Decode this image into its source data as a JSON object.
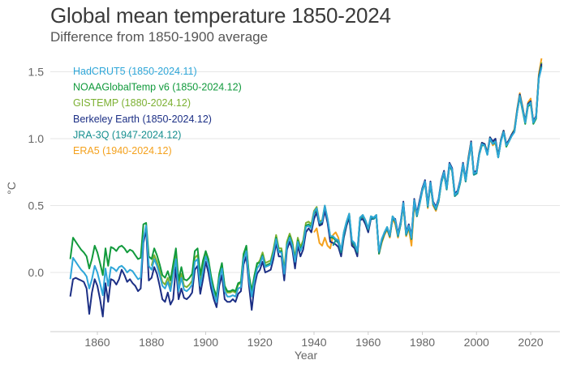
{
  "chart_data": {
    "type": "line",
    "title": "Global mean temperature 1850-2024",
    "subtitle": "Difference from 1850-1900 average",
    "xlabel": "Year",
    "ylabel": "°C",
    "xlim": [
      1843,
      2033
    ],
    "ylim": [
      -0.44,
      1.65
    ],
    "xticks": [
      1860,
      1880,
      1900,
      1920,
      1940,
      1960,
      1980,
      2000,
      2020
    ],
    "yticks": [
      "0.0",
      "0.5",
      "1.0",
      "1.5"
    ],
    "ytick_values": [
      0,
      0.5,
      1.0,
      1.5
    ],
    "grid": "horizontal",
    "legend_position": "top-left",
    "series": [
      {
        "name": "HadCRUT5 (1850-2024.11)",
        "color": "#2ea6d8",
        "start_year": 1850,
        "values": [
          -0.05,
          0.11,
          0.08,
          0.05,
          0.02,
          0.0,
          -0.03,
          -0.12,
          -0.05,
          0.05,
          0.0,
          -0.08,
          -0.17,
          0.03,
          -0.1,
          0.04,
          0.03,
          0.01,
          0.04,
          0.05,
          0.03,
          0.0,
          0.02,
          0.01,
          -0.02,
          -0.05,
          -0.04,
          0.25,
          0.35,
          0.05,
          0.02,
          0.1,
          0.05,
          -0.02,
          -0.1,
          -0.12,
          -0.07,
          -0.14,
          -0.02,
          0.1,
          -0.14,
          -0.04,
          -0.13,
          -0.14,
          -0.12,
          -0.09,
          0.08,
          0.1,
          -0.1,
          0.01,
          0.12,
          0.06,
          -0.07,
          -0.16,
          -0.22,
          -0.05,
          0.03,
          -0.14,
          -0.18,
          -0.18,
          -0.17,
          -0.18,
          -0.12,
          -0.11,
          0.1,
          0.16,
          -0.06,
          -0.18,
          -0.06,
          0.03,
          0.06,
          0.12,
          0.04,
          0.05,
          0.06,
          0.14,
          0.25,
          0.15,
          0.15,
          -0.01,
          0.2,
          0.26,
          0.2,
          0.08,
          0.23,
          0.16,
          0.21,
          0.34,
          0.35,
          0.33,
          0.45,
          0.48,
          0.37,
          0.38,
          0.5,
          0.4,
          0.27,
          0.27,
          0.25,
          0.24,
          0.17,
          0.3,
          0.38,
          0.44,
          0.24,
          0.22,
          0.16,
          0.41,
          0.43,
          0.39,
          0.33,
          0.42,
          0.41,
          0.43,
          0.16,
          0.25,
          0.3,
          0.34,
          0.28,
          0.42,
          0.39,
          0.28,
          0.37,
          0.52,
          0.29,
          0.35,
          0.26,
          0.54,
          0.43,
          0.52,
          0.62,
          0.68,
          0.5,
          0.67,
          0.52,
          0.48,
          0.54,
          0.68,
          0.75,
          0.63,
          0.81,
          0.77,
          0.58,
          0.6,
          0.68,
          0.81,
          0.69,
          0.84,
          0.97,
          0.74,
          0.75,
          0.88,
          0.96,
          0.95,
          0.88,
          1.0,
          0.96,
          0.98,
          0.86,
          0.98,
          1.05,
          0.95,
          0.98,
          1.02,
          1.05,
          1.2,
          1.32,
          1.22,
          1.12,
          1.25,
          1.27,
          1.12,
          1.16,
          1.45,
          1.53
        ]
      },
      {
        "name": "NOAAGlobalTemp v6 (1850-2024.12)",
        "color": "#119a3c",
        "start_year": 1850,
        "values": [
          0.1,
          0.26,
          0.23,
          0.2,
          0.17,
          0.15,
          0.12,
          0.03,
          0.1,
          0.2,
          0.15,
          0.07,
          -0.02,
          0.18,
          0.05,
          0.19,
          0.18,
          0.16,
          0.19,
          0.2,
          0.18,
          0.15,
          0.17,
          0.16,
          0.13,
          0.1,
          0.11,
          0.36,
          0.37,
          0.12,
          0.1,
          0.18,
          0.13,
          0.06,
          -0.02,
          -0.04,
          0.01,
          -0.06,
          0.06,
          0.18,
          -0.06,
          0.04,
          -0.05,
          -0.06,
          -0.04,
          -0.01,
          0.16,
          0.18,
          -0.02,
          0.09,
          0.16,
          0.1,
          -0.03,
          -0.12,
          -0.18,
          -0.01,
          0.07,
          -0.1,
          -0.14,
          -0.14,
          -0.13,
          -0.14,
          -0.08,
          -0.07,
          0.14,
          0.2,
          -0.02,
          -0.14,
          -0.02,
          0.07,
          0.07,
          0.13,
          0.05,
          0.06,
          0.07,
          0.15,
          0.26,
          0.16,
          0.16,
          0.0,
          0.21,
          0.27,
          0.21,
          0.09,
          0.24,
          0.17,
          0.22,
          0.35,
          0.36,
          0.34,
          0.44,
          0.47,
          0.36,
          0.37,
          0.48,
          0.38,
          0.26,
          0.26,
          0.24,
          0.23,
          0.15,
          0.29,
          0.37,
          0.43,
          0.22,
          0.2,
          0.14,
          0.4,
          0.42,
          0.38,
          0.32,
          0.41,
          0.4,
          0.42,
          0.14,
          0.23,
          0.29,
          0.33,
          0.27,
          0.41,
          0.38,
          0.27,
          0.36,
          0.51,
          0.28,
          0.34,
          0.25,
          0.53,
          0.42,
          0.52,
          0.62,
          0.67,
          0.5,
          0.66,
          0.51,
          0.47,
          0.53,
          0.67,
          0.74,
          0.62,
          0.8,
          0.76,
          0.57,
          0.59,
          0.67,
          0.8,
          0.68,
          0.84,
          0.96,
          0.73,
          0.74,
          0.88,
          0.95,
          0.95,
          0.88,
          1.0,
          0.96,
          0.97,
          0.86,
          0.98,
          1.05,
          0.94,
          0.98,
          1.02,
          1.06,
          1.2,
          1.31,
          1.21,
          1.11,
          1.24,
          1.26,
          1.11,
          1.15,
          1.45,
          1.55
        ]
      },
      {
        "name": "GISTEMP (1880-2024.12)",
        "color": "#7cb032",
        "start_year": 1880,
        "values": [
          0.05,
          0.13,
          0.08,
          0.01,
          -0.07,
          -0.09,
          -0.04,
          -0.11,
          0.01,
          0.13,
          -0.11,
          -0.01,
          -0.1,
          -0.11,
          -0.09,
          -0.06,
          0.11,
          0.13,
          -0.07,
          0.04,
          0.15,
          0.09,
          -0.04,
          -0.13,
          -0.19,
          -0.02,
          0.06,
          -0.11,
          -0.15,
          -0.15,
          -0.14,
          -0.15,
          -0.09,
          -0.08,
          0.13,
          0.19,
          -0.03,
          -0.15,
          -0.03,
          0.06,
          0.09,
          0.15,
          0.07,
          0.08,
          0.09,
          0.17,
          0.28,
          0.18,
          0.18,
          0.02,
          0.23,
          0.29,
          0.23,
          0.11,
          0.26,
          0.19,
          0.24,
          0.37,
          0.38,
          0.36,
          0.46,
          0.49,
          0.38,
          0.39,
          0.5,
          0.4,
          0.27,
          0.27,
          0.25,
          0.24,
          0.16,
          0.3,
          0.38,
          0.44,
          0.23,
          0.21,
          0.15,
          0.41,
          0.43,
          0.39,
          0.33,
          0.42,
          0.41,
          0.43,
          0.15,
          0.24,
          0.3,
          0.34,
          0.28,
          0.42,
          0.39,
          0.28,
          0.37,
          0.52,
          0.29,
          0.35,
          0.26,
          0.54,
          0.43,
          0.53,
          0.63,
          0.68,
          0.51,
          0.67,
          0.52,
          0.48,
          0.54,
          0.68,
          0.75,
          0.63,
          0.81,
          0.77,
          0.58,
          0.6,
          0.68,
          0.81,
          0.69,
          0.85,
          0.97,
          0.74,
          0.75,
          0.89,
          0.97,
          0.96,
          0.89,
          1.01,
          0.97,
          0.99,
          0.87,
          0.99,
          1.06,
          0.95,
          0.99,
          1.03,
          1.07,
          1.21,
          1.33,
          1.23,
          1.13,
          1.26,
          1.28,
          1.12,
          1.17,
          1.47,
          1.57
        ]
      },
      {
        "name": "Berkeley Earth (1850-2024.12)",
        "color": "#1c2f85",
        "start_year": 1850,
        "values": [
          -0.18,
          -0.05,
          -0.04,
          -0.05,
          -0.06,
          -0.07,
          -0.12,
          -0.31,
          -0.15,
          -0.05,
          -0.1,
          -0.2,
          -0.33,
          -0.08,
          -0.22,
          -0.05,
          -0.06,
          -0.09,
          -0.05,
          0.02,
          -0.02,
          -0.07,
          -0.05,
          -0.08,
          -0.1,
          -0.14,
          -0.12,
          0.22,
          0.32,
          -0.06,
          -0.04,
          0.04,
          -0.01,
          -0.1,
          -0.2,
          -0.22,
          -0.15,
          -0.24,
          -0.2,
          0.04,
          -0.2,
          -0.12,
          -0.19,
          -0.2,
          -0.18,
          -0.15,
          0.02,
          0.05,
          -0.16,
          -0.05,
          0.08,
          0.0,
          -0.12,
          -0.2,
          -0.26,
          -0.1,
          -0.02,
          -0.2,
          -0.22,
          -0.22,
          -0.2,
          -0.22,
          -0.16,
          -0.14,
          0.06,
          0.12,
          -0.1,
          -0.28,
          -0.1,
          -0.01,
          0.02,
          0.08,
          0.0,
          0.01,
          0.02,
          0.1,
          0.22,
          0.12,
          0.12,
          -0.06,
          0.17,
          0.23,
          0.17,
          0.03,
          0.2,
          0.12,
          0.17,
          0.3,
          0.33,
          0.3,
          0.4,
          0.45,
          0.35,
          0.36,
          0.46,
          0.37,
          0.23,
          0.22,
          0.21,
          0.19,
          0.12,
          0.26,
          0.35,
          0.41,
          0.2,
          0.18,
          0.12,
          0.39,
          0.4,
          0.36,
          0.3,
          0.4,
          0.4,
          0.42,
          0.15,
          0.24,
          0.29,
          0.33,
          0.27,
          0.41,
          0.4,
          0.29,
          0.38,
          0.53,
          0.3,
          0.36,
          0.27,
          0.55,
          0.44,
          0.54,
          0.63,
          0.69,
          0.51,
          0.68,
          0.53,
          0.49,
          0.55,
          0.69,
          0.76,
          0.64,
          0.82,
          0.78,
          0.59,
          0.61,
          0.69,
          0.82,
          0.7,
          0.85,
          0.98,
          0.75,
          0.76,
          0.89,
          0.97,
          0.96,
          0.89,
          1.01,
          0.98,
          1.0,
          0.87,
          0.99,
          1.06,
          0.96,
          0.99,
          1.03,
          1.06,
          1.21,
          1.33,
          1.23,
          1.13,
          1.26,
          1.28,
          1.13,
          1.17,
          1.46,
          1.56
        ]
      },
      {
        "name": "JRA-3Q (1947-2024.12)",
        "color": "#168f8f",
        "start_year": 1947,
        "values": [
          0.2,
          0.24,
          0.22,
          0.15,
          0.28,
          0.37,
          0.43,
          0.23,
          0.2,
          0.15,
          0.4,
          0.42,
          0.38,
          0.32,
          0.41,
          0.4,
          0.42,
          0.15,
          0.24,
          0.29,
          0.33,
          0.27,
          0.41,
          0.38,
          0.27,
          0.36,
          0.51,
          0.28,
          0.34,
          0.25,
          0.53,
          0.42,
          0.51,
          0.61,
          0.67,
          0.49,
          0.66,
          0.51,
          0.47,
          0.53,
          0.67,
          0.74,
          0.62,
          0.8,
          0.76,
          0.57,
          0.59,
          0.67,
          0.8,
          0.68,
          0.83,
          0.96,
          0.73,
          0.74,
          0.88,
          0.96,
          0.95,
          0.88,
          1.0,
          0.96,
          0.98,
          0.86,
          0.98,
          1.05,
          0.95,
          0.98,
          1.02,
          1.05,
          1.2,
          1.32,
          1.22,
          1.12,
          1.25,
          1.27,
          1.12,
          1.16,
          1.45,
          1.54
        ]
      },
      {
        "name": "ERA5 (1940-2024.12)",
        "color": "#f4a11d",
        "start_year": 1940,
        "values": [
          0.3,
          0.33,
          0.22,
          0.2,
          0.26,
          0.2,
          0.18,
          0.28,
          0.3,
          0.26,
          0.15,
          0.28,
          0.36,
          0.42,
          0.21,
          0.18,
          0.13,
          0.39,
          0.42,
          0.38,
          0.31,
          0.41,
          0.4,
          0.42,
          0.14,
          0.22,
          0.28,
          0.32,
          0.26,
          0.4,
          0.36,
          0.26,
          0.36,
          0.5,
          0.27,
          0.33,
          0.2,
          0.5,
          0.42,
          0.52,
          0.62,
          0.68,
          0.48,
          0.67,
          0.5,
          0.46,
          0.53,
          0.68,
          0.75,
          0.63,
          0.8,
          0.76,
          0.57,
          0.6,
          0.68,
          0.81,
          0.69,
          0.86,
          0.98,
          0.74,
          0.75,
          0.89,
          0.97,
          0.96,
          0.9,
          1.0,
          0.95,
          0.97,
          0.86,
          0.99,
          1.06,
          0.95,
          0.99,
          1.03,
          1.07,
          1.22,
          1.34,
          1.24,
          1.12,
          1.27,
          1.3,
          1.12,
          1.17,
          1.48,
          1.6
        ]
      }
    ]
  }
}
